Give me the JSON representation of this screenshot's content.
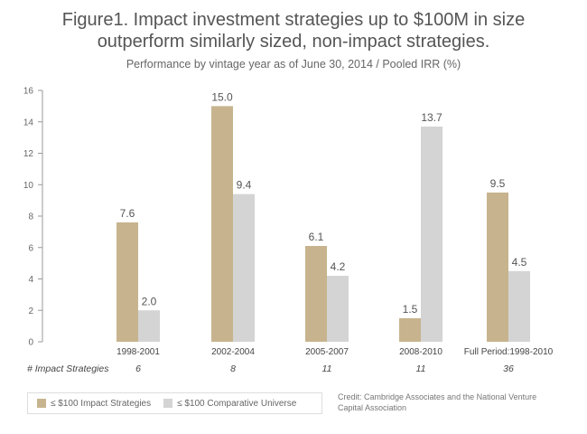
{
  "title_line1": "Figure1. Impact investment strategies up to $100M in size",
  "title_line2": "outperform similarly sized, non-impact strategies.",
  "subtitle": "Performance by vintage year as of June 30, 2014   /   Pooled IRR (%)",
  "strategies_label": "# Impact Strategies",
  "credit": "Credit: Cambridge Associates and the National Venture Capital Association",
  "colors": {
    "impact": "#c7b48e",
    "comparative": "#d4d4d4"
  },
  "chart_data": {
    "type": "bar",
    "categories": [
      "1998-2001",
      "2002-2004",
      "2005-2007",
      "2008-2010",
      "Full Period:1998-2010"
    ],
    "series": [
      {
        "name": "≤ $100 Impact Strategies",
        "values": [
          7.6,
          15.0,
          6.1,
          1.5,
          9.5
        ]
      },
      {
        "name": "≤ $100 Comparative Universe",
        "values": [
          2.0,
          9.4,
          4.2,
          13.7,
          4.5
        ]
      }
    ],
    "value_labels": [
      [
        "7.6",
        "15.0",
        "6.1",
        "1.5",
        "9.5"
      ],
      [
        "2.0",
        "9.4",
        "4.2",
        "13.7",
        "4.5"
      ]
    ],
    "impact_strategies": [
      "6",
      "8",
      "11",
      "11",
      "36"
    ],
    "yticks": [
      "0",
      "2",
      "4",
      "6",
      "8",
      "10",
      "12",
      "14",
      "16"
    ],
    "ylim": [
      0,
      16
    ],
    "grid": false,
    "legend_position": "bottom-left"
  }
}
